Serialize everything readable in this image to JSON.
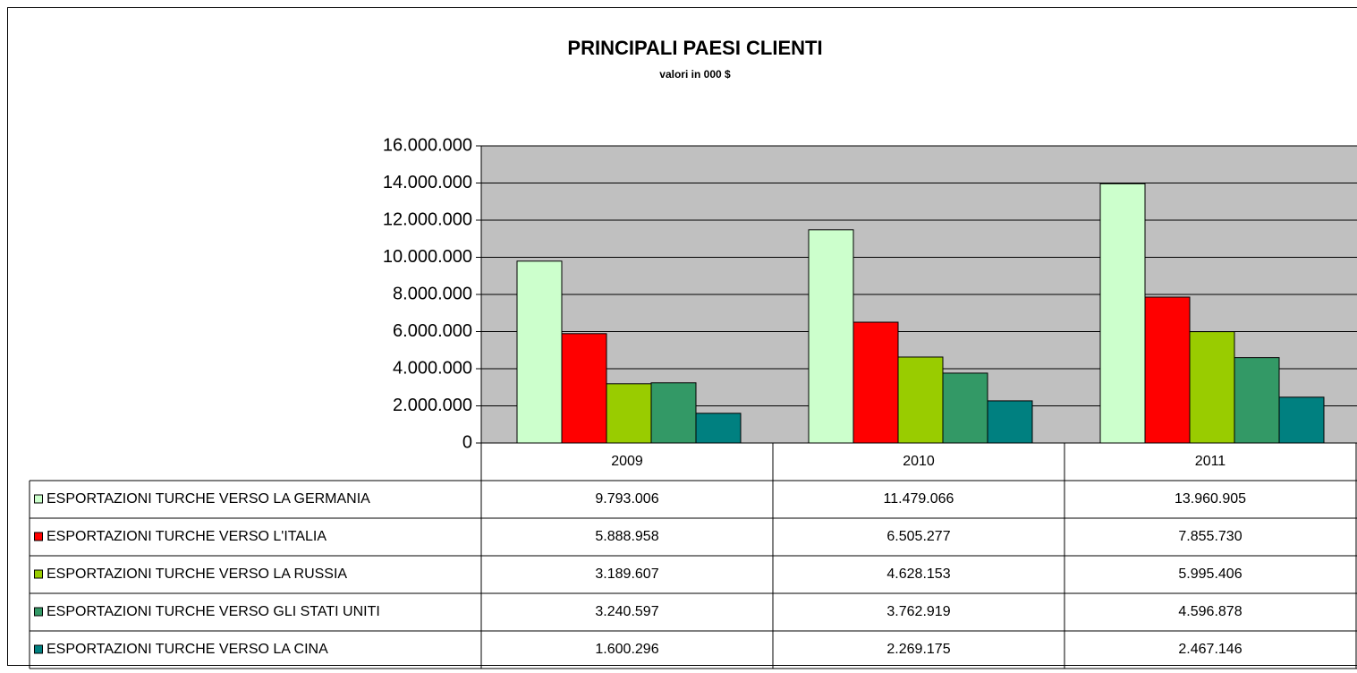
{
  "chart_data": {
    "type": "bar",
    "title": "PRINCIPALI PAESI CLIENTI",
    "subtitle": "valori in 000 $",
    "categories": [
      "2009",
      "2010",
      "2011"
    ],
    "series": [
      {
        "name": "ESPORTAZIONI TURCHE VERSO LA GERMANIA",
        "color": "#ccffcc",
        "values": [
          9793006,
          11479066,
          13960905
        ],
        "value_labels": [
          "9.793.006",
          "11.479.066",
          "13.960.905"
        ]
      },
      {
        "name": "ESPORTAZIONI TURCHE VERSO L'ITALIA",
        "color": "#ff0000",
        "values": [
          5888958,
          6505277,
          7855730
        ],
        "value_labels": [
          "5.888.958",
          "6.505.277",
          "7.855.730"
        ]
      },
      {
        "name": "ESPORTAZIONI TURCHE VERSO LA RUSSIA",
        "color": "#99cc00",
        "values": [
          3189607,
          4628153,
          5995406
        ],
        "value_labels": [
          "3.189.607",
          "4.628.153",
          "5.995.406"
        ]
      },
      {
        "name": "ESPORTAZIONI TURCHE VERSO GLI STATI UNITI",
        "color": "#339966",
        "values": [
          3240597,
          3762919,
          4596878
        ],
        "value_labels": [
          "3.240.597",
          "3.762.919",
          "4.596.878"
        ]
      },
      {
        "name": "ESPORTAZIONI TURCHE VERSO LA CINA",
        "color": "#008080",
        "values": [
          1600296,
          2269175,
          2467146
        ],
        "value_labels": [
          "1.600.296",
          "2.269.175",
          "2.467.146"
        ]
      }
    ],
    "ylim": [
      0,
      16000000
    ],
    "yticks": [
      0,
      {
        "value": 2000000,
        "label": "2.000.000"
      },
      {
        "value": 4000000,
        "label": "4.000.000"
      },
      {
        "value": 6000000,
        "label": "6.000.000"
      },
      {
        "value": 8000000,
        "label": "8.000.000"
      },
      {
        "value": 10000000,
        "label": "10.000.000"
      },
      {
        "value": 12000000,
        "label": "12.000.000"
      },
      {
        "value": 14000000,
        "label": "14.000.000"
      },
      {
        "value": 16000000,
        "label": "16.000.000"
      }
    ],
    "grid": true,
    "plot_background": "#c0c0c0"
  }
}
